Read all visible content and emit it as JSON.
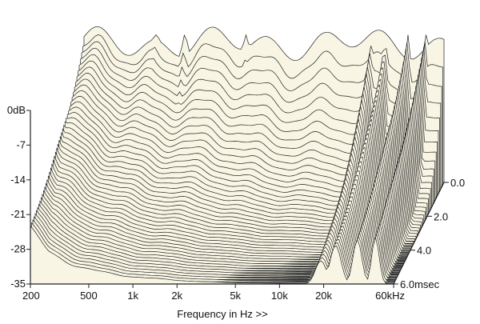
{
  "chart_data": {
    "type": "waterfall",
    "title": "",
    "xlabel": "Frequency in Hz >>",
    "ylabel": "",
    "zlabel": "",
    "x_scale": "log",
    "x_range": [
      200,
      60000
    ],
    "y_range": [
      -35,
      0
    ],
    "time_range": [
      0.0,
      6.0
    ],
    "x_ticks": [
      {
        "value": 200,
        "label": "200"
      },
      {
        "value": 500,
        "label": "500"
      },
      {
        "value": 1000,
        "label": "1k"
      },
      {
        "value": 2000,
        "label": "2k"
      },
      {
        "value": 5000,
        "label": "5k"
      },
      {
        "value": 10000,
        "label": "10k"
      },
      {
        "value": 20000,
        "label": "20k"
      },
      {
        "value": 60000,
        "label": "60kHz"
      }
    ],
    "y_ticks": [
      {
        "value": 0,
        "label": "0dB"
      },
      {
        "value": -7,
        "label": "-7"
      },
      {
        "value": -14,
        "label": "-14"
      },
      {
        "value": -21,
        "label": "-21"
      },
      {
        "value": -28,
        "label": "-28"
      },
      {
        "value": -35,
        "label": "-35"
      }
    ],
    "time_ticks": [
      {
        "value": 0.0,
        "label": "0.0"
      },
      {
        "value": 2.0,
        "label": "2.0"
      },
      {
        "value": 4.0,
        "label": "4.0"
      },
      {
        "value": 6.0,
        "label": "6.0msec"
      }
    ],
    "colors": {
      "surface": "#f8f5e4",
      "line": "#222222",
      "floor": "#6b6b6b"
    }
  }
}
